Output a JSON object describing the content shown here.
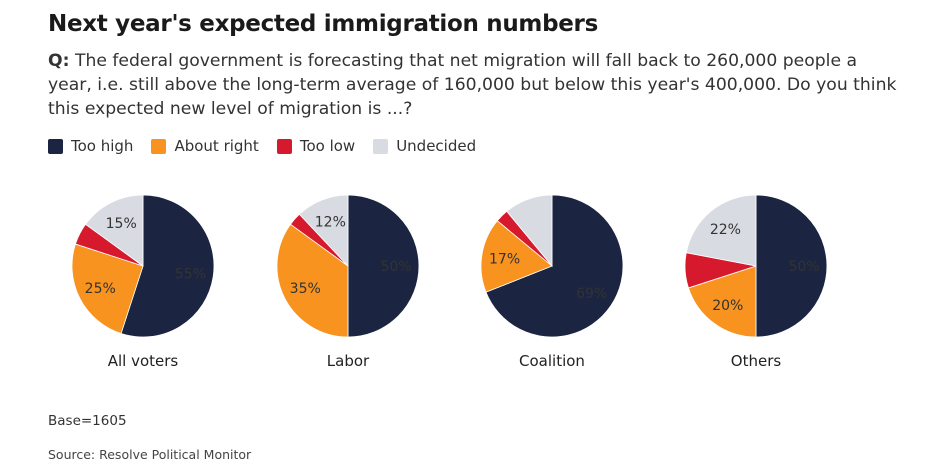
{
  "title": "Next year's expected immigration numbers",
  "question": {
    "prefix": "Q:",
    "text": " The federal government is forecasting that net migration will fall back to 260,000 people a year, i.e. still above the long-term average of 160,000 but below this year's 400,000. Do you think this expected new level of migration is ...?"
  },
  "legend": [
    {
      "label": "Too high",
      "color": "#1b2541"
    },
    {
      "label": "About right",
      "color": "#f7931e"
    },
    {
      "label": "Too low",
      "color": "#d7192d"
    },
    {
      "label": "Undecided",
      "color": "#d8dce2"
    }
  ],
  "chart_data": [
    {
      "type": "pie",
      "name": "All voters",
      "slices": [
        {
          "category": "Too high",
          "value": 55,
          "label": "55%"
        },
        {
          "category": "About right",
          "value": 25,
          "label": "25%"
        },
        {
          "category": "Too low",
          "value": 5,
          "label": ""
        },
        {
          "category": "Undecided",
          "value": 15,
          "label": "15%"
        }
      ]
    },
    {
      "type": "pie",
      "name": "Labor",
      "slices": [
        {
          "category": "Too high",
          "value": 50,
          "label": "50%"
        },
        {
          "category": "About right",
          "value": 35,
          "label": "35%"
        },
        {
          "category": "Too low",
          "value": 3,
          "label": ""
        },
        {
          "category": "Undecided",
          "value": 12,
          "label": "12%"
        }
      ]
    },
    {
      "type": "pie",
      "name": "Coalition",
      "slices": [
        {
          "category": "Too high",
          "value": 69,
          "label": "69%"
        },
        {
          "category": "About right",
          "value": 17,
          "label": "17%"
        },
        {
          "category": "Too low",
          "value": 3,
          "label": ""
        },
        {
          "category": "Undecided",
          "value": 11,
          "label": ""
        }
      ]
    },
    {
      "type": "pie",
      "name": "Others",
      "slices": [
        {
          "category": "Too high",
          "value": 50,
          "label": "50%"
        },
        {
          "category": "About right",
          "value": 20,
          "label": "20%"
        },
        {
          "category": "Too low",
          "value": 8,
          "label": ""
        },
        {
          "category": "Undecided",
          "value": 22,
          "label": "22%"
        }
      ]
    }
  ],
  "base": "Base=1605",
  "source": "Source: Resolve Political Monitor"
}
